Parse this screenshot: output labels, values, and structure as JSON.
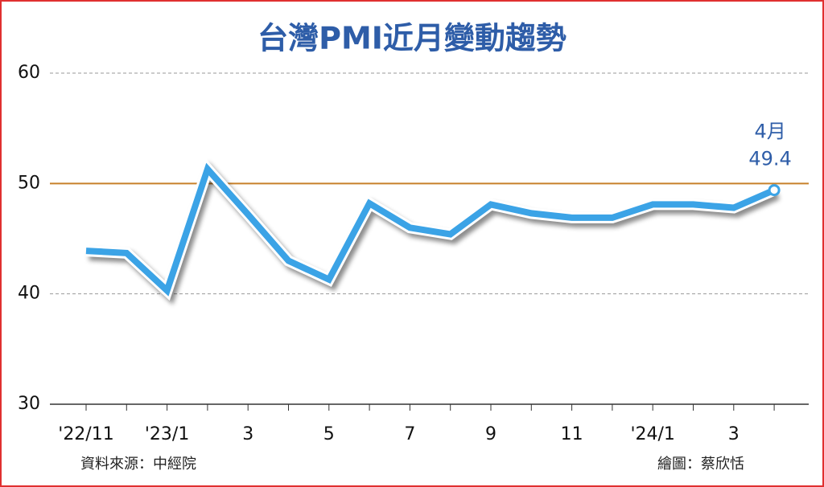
{
  "chart_data": {
    "type": "line",
    "title": "台灣PMI近月變動趨勢",
    "categories": [
      "'22/11",
      null,
      "'23/1",
      null,
      "3",
      null,
      "5",
      null,
      "7",
      null,
      "9",
      null,
      "11",
      null,
      "'24/1",
      null,
      "3",
      null
    ],
    "series": [
      {
        "name": "PMI",
        "color": "#3ba3e6",
        "values": [
          43.9,
          43.7,
          40.3,
          51.3,
          47.2,
          43.0,
          41.3,
          48.2,
          46.0,
          45.4,
          48.1,
          47.3,
          46.9,
          46.9,
          48.1,
          48.1,
          47.8,
          49.4
        ]
      }
    ],
    "ylim": [
      30,
      60
    ],
    "yticks": [
      30,
      40,
      50,
      60
    ],
    "grid": true,
    "reference_line": {
      "value": 50,
      "color": "#c8802a"
    },
    "annotation": "4月",
    "source": "資料來源：中經院",
    "credit": "繪圖：蔡欣恬"
  }
}
